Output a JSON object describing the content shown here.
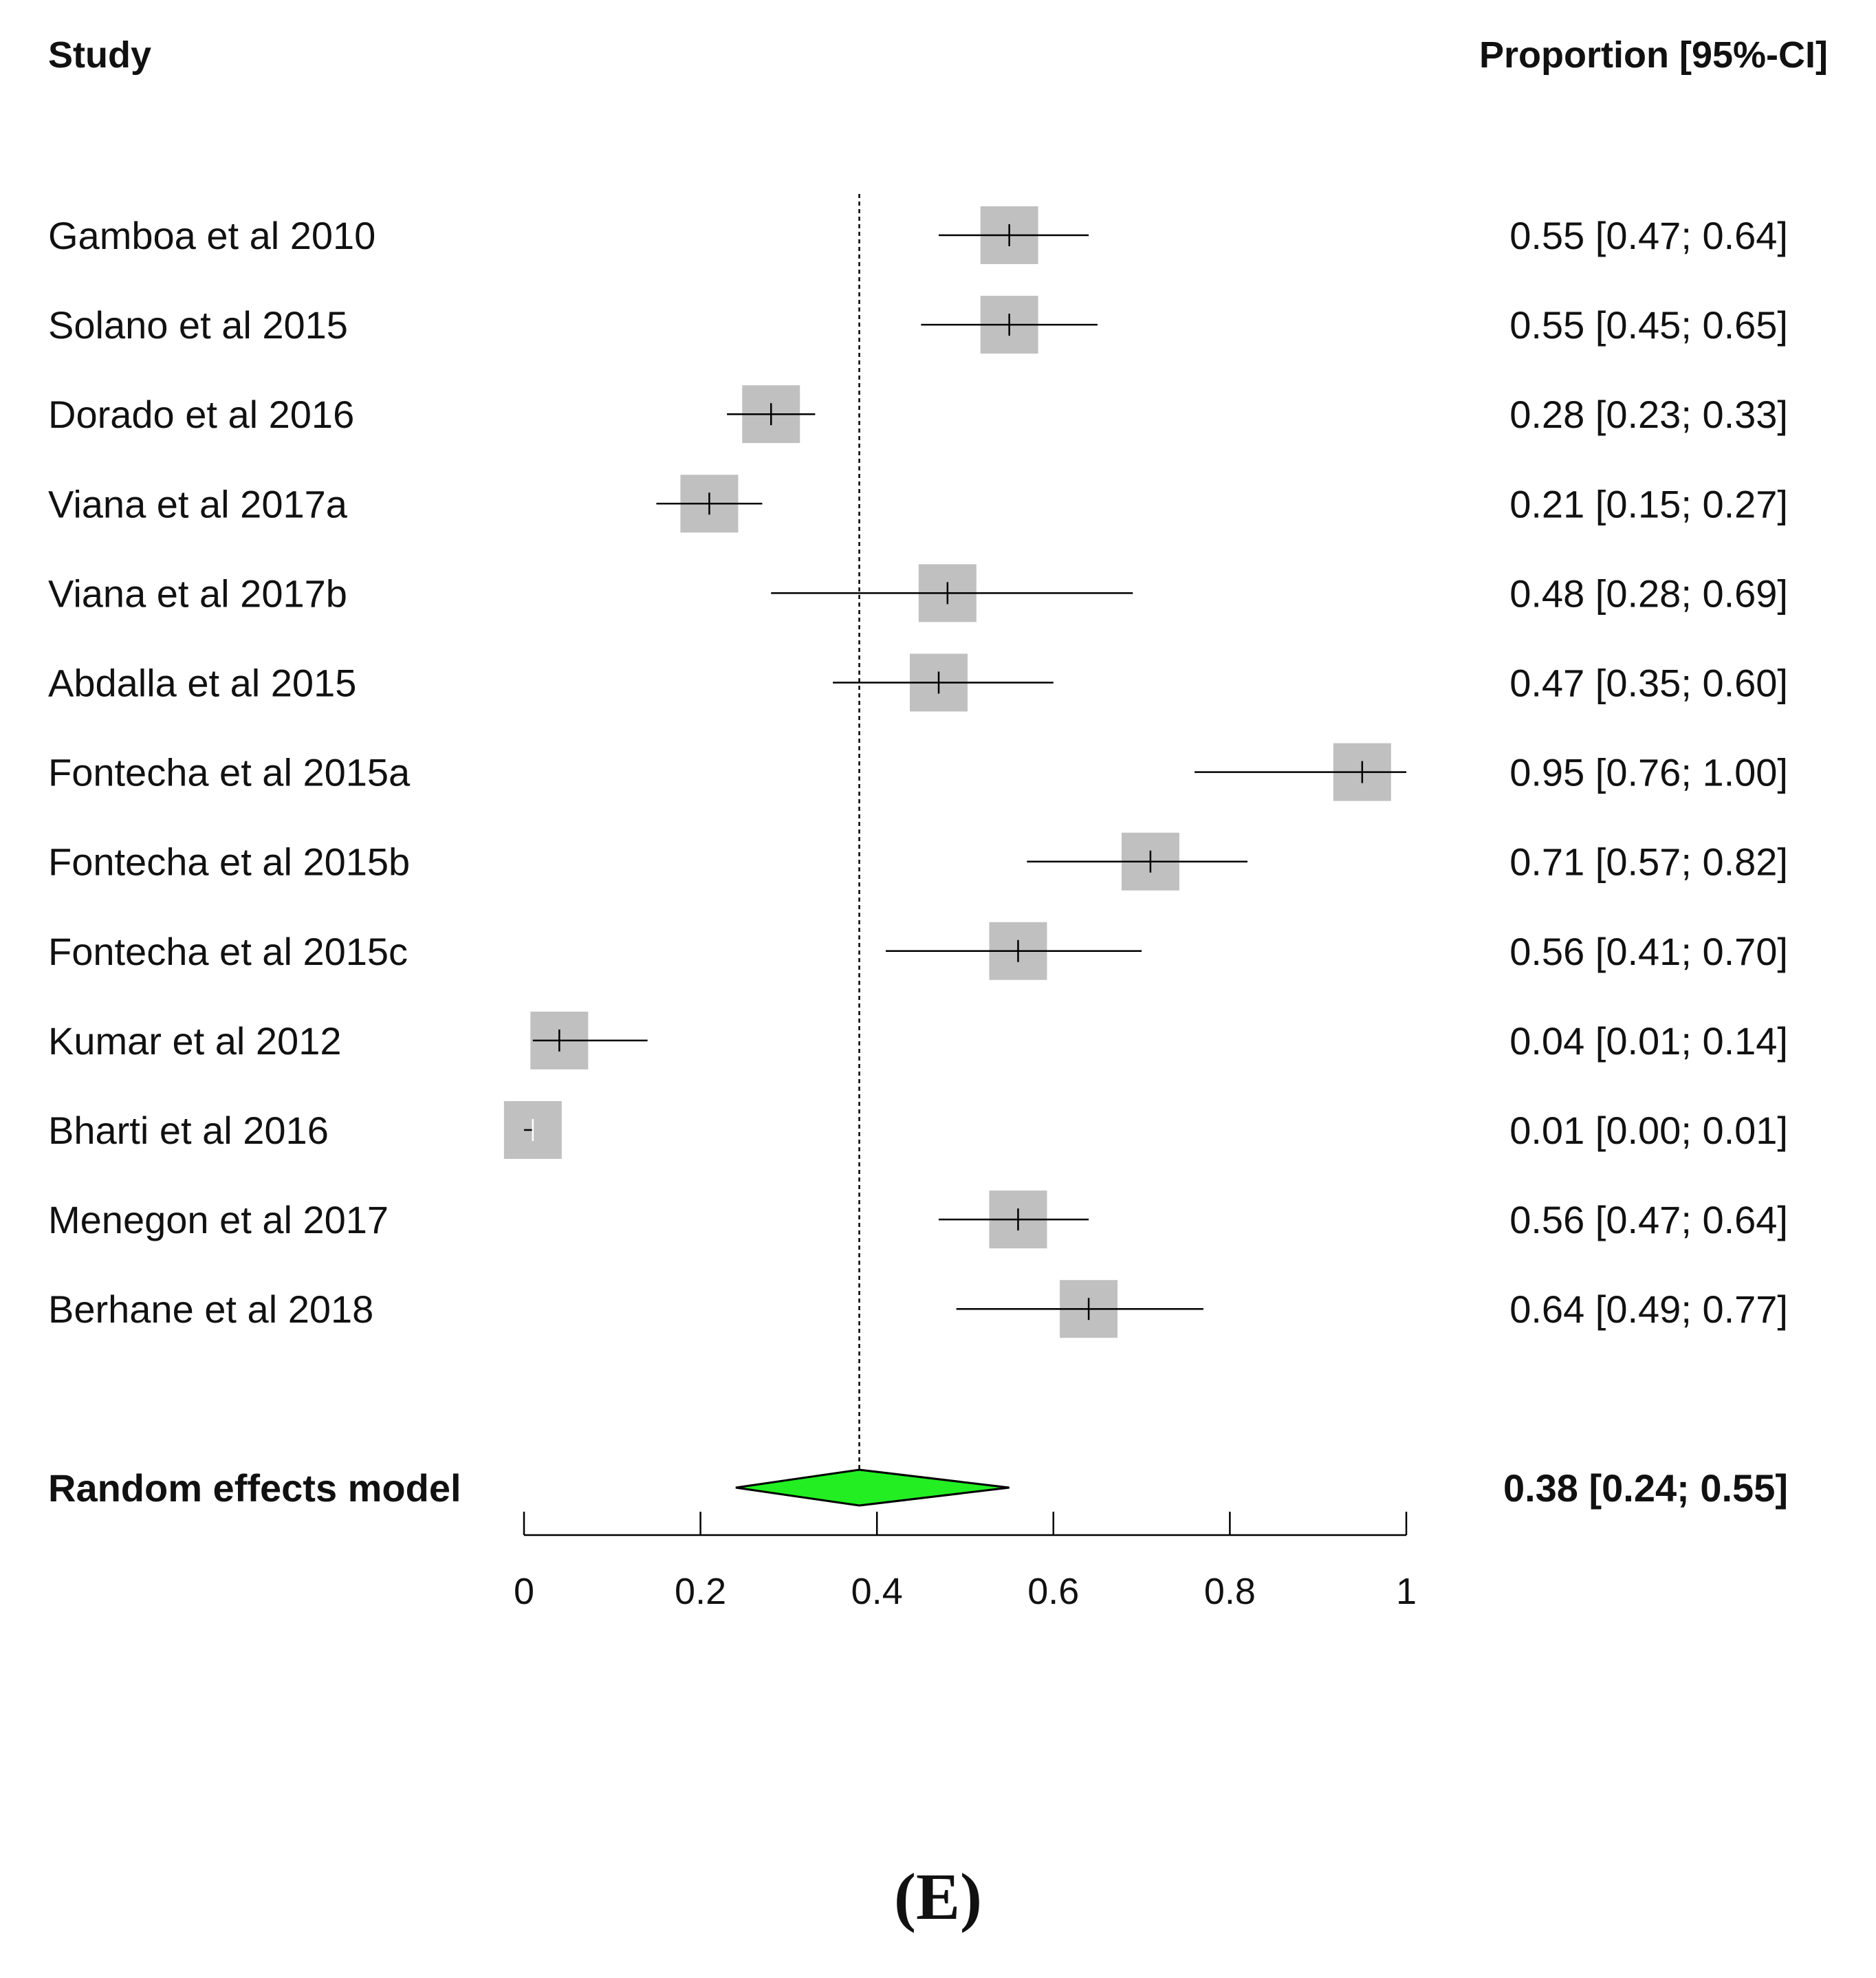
{
  "chart_data": {
    "type": "forest",
    "header_left": "Study",
    "header_right": "Proportion [95%-CI]",
    "xlim": [
      0,
      1
    ],
    "ticks": [
      0,
      0.2,
      0.4,
      0.6,
      0.8,
      1
    ],
    "tick_labels": [
      "0",
      "0.2",
      "0.4",
      "0.6",
      "0.8",
      "1"
    ],
    "reference_line": 0.38,
    "studies": [
      {
        "name": "Gamboa et al 2010",
        "est": 0.55,
        "lo": 0.47,
        "hi": 0.64,
        "ci_text": "0.55 [0.47; 0.64]"
      },
      {
        "name": "Solano et al 2015",
        "est": 0.55,
        "lo": 0.45,
        "hi": 0.65,
        "ci_text": "0.55 [0.45; 0.65]"
      },
      {
        "name": "Dorado et al 2016",
        "est": 0.28,
        "lo": 0.23,
        "hi": 0.33,
        "ci_text": "0.28 [0.23; 0.33]"
      },
      {
        "name": "Viana et al 2017a",
        "est": 0.21,
        "lo": 0.15,
        "hi": 0.27,
        "ci_text": "0.21 [0.15; 0.27]"
      },
      {
        "name": "Viana et al 2017b",
        "est": 0.48,
        "lo": 0.28,
        "hi": 0.69,
        "ci_text": "0.48 [0.28; 0.69]"
      },
      {
        "name": "Abdalla et al 2015",
        "est": 0.47,
        "lo": 0.35,
        "hi": 0.6,
        "ci_text": "0.47 [0.35; 0.60]"
      },
      {
        "name": "Fontecha et al 2015a",
        "est": 0.95,
        "lo": 0.76,
        "hi": 1.0,
        "ci_text": "0.95 [0.76; 1.00]"
      },
      {
        "name": "Fontecha et al 2015b",
        "est": 0.71,
        "lo": 0.57,
        "hi": 0.82,
        "ci_text": "0.71 [0.57; 0.82]"
      },
      {
        "name": "Fontecha et al 2015c",
        "est": 0.56,
        "lo": 0.41,
        "hi": 0.7,
        "ci_text": "0.56 [0.41; 0.70]"
      },
      {
        "name": "Kumar et al 2012",
        "est": 0.04,
        "lo": 0.01,
        "hi": 0.14,
        "ci_text": "0.04 [0.01; 0.14]"
      },
      {
        "name": "Bharti et al 2016",
        "est": 0.01,
        "lo": 0.0,
        "hi": 0.01,
        "ci_text": "0.01 [0.00; 0.01]"
      },
      {
        "name": "Menegon et al 2017",
        "est": 0.56,
        "lo": 0.47,
        "hi": 0.64,
        "ci_text": "0.56 [0.47; 0.64]"
      },
      {
        "name": "Berhane et al 2018",
        "est": 0.64,
        "lo": 0.49,
        "hi": 0.77,
        "ci_text": "0.64 [0.49; 0.77]"
      }
    ],
    "pooled": {
      "name": "Random effects model",
      "est": 0.38,
      "lo": 0.24,
      "hi": 0.55,
      "ci_text": "0.38 [0.24; 0.55]"
    },
    "colors": {
      "box": "#c0c0c0",
      "diamond": "#22ee22",
      "line": "#000000"
    }
  },
  "panel_label": "(E)"
}
